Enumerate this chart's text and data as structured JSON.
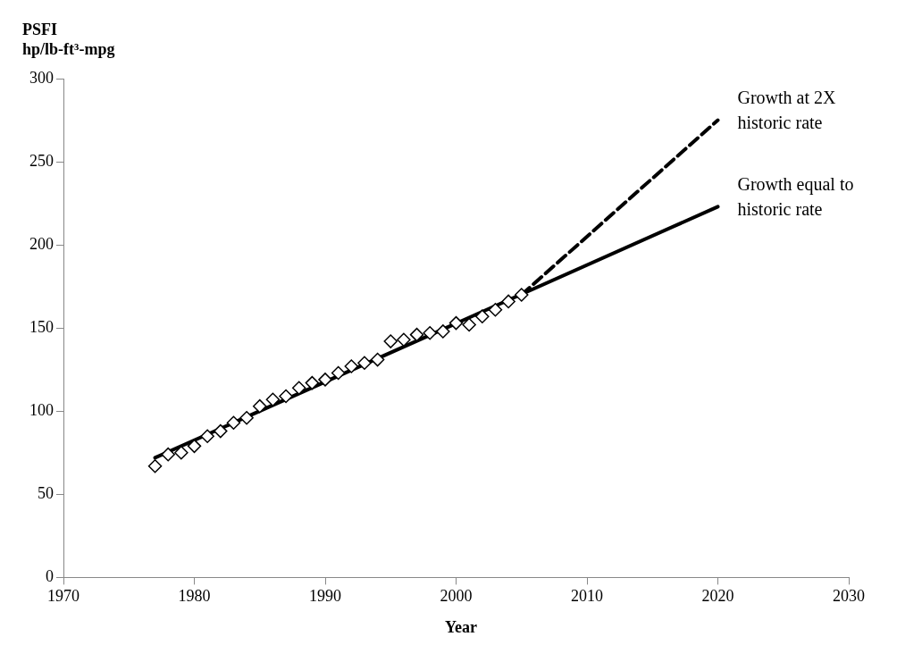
{
  "chart_data": {
    "type": "scatter",
    "xlabel": "Year",
    "ylabel": "PSFI hp/lb-ft³-mpg",
    "xlim": [
      1970,
      2030
    ],
    "xticks": [
      1970,
      1980,
      1990,
      2000,
      2010,
      2020,
      2030
    ],
    "ylim": [
      0,
      300
    ],
    "yticks": [
      0,
      50,
      100,
      150,
      200,
      250,
      300
    ],
    "grid": false,
    "legend": false,
    "series": [
      {
        "marker": "diamond",
        "color": "#000000",
        "x": [
          1977,
          1978,
          1979,
          1980,
          1981,
          1982,
          1983,
          1984,
          1985,
          1986,
          1987,
          1988,
          1989,
          1990,
          1991,
          1992,
          1993,
          1994,
          1995,
          1996,
          1997,
          1998,
          1999,
          2000,
          2001,
          2002,
          2003,
          2004,
          2005
        ],
        "values": [
          67,
          74,
          75,
          79,
          85,
          88,
          93,
          96,
          103,
          107,
          109,
          114,
          117,
          119,
          123,
          127,
          129,
          131,
          142,
          143,
          146,
          147,
          148,
          153,
          152,
          157,
          161,
          166,
          170
        ]
      },
      {
        "type": "line",
        "name": "Growth at 2X historic rate",
        "line_style": "dashed",
        "marker": "none",
        "color": "#000000",
        "x": [
          2005,
          2020
        ],
        "values": [
          170,
          275
        ]
      },
      {
        "type": "line",
        "name": "Growth equal to historic rate",
        "line_style": "solid",
        "marker": "none",
        "color": "#000000",
        "x": [
          1977,
          2020
        ],
        "values": [
          72,
          223
        ]
      }
    ]
  }
}
